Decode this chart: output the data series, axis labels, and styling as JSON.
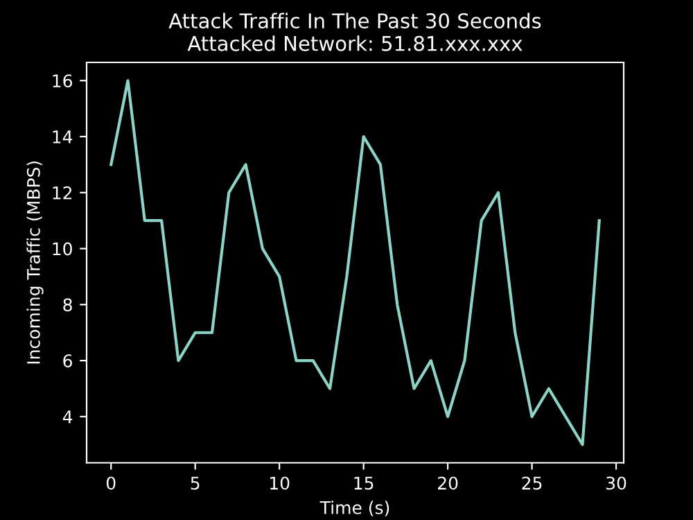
{
  "chart_data": {
    "type": "line",
    "title": "Attack Traffic In The Past 30 Seconds\nAttacked Network: 51.81.xxx.xxx",
    "xlabel": "Time (s)",
    "ylabel": "Incoming Traffic (MBPS)",
    "x": [
      0,
      1,
      2,
      3,
      4,
      5,
      6,
      7,
      8,
      9,
      10,
      11,
      12,
      13,
      14,
      15,
      16,
      17,
      18,
      19,
      20,
      21,
      22,
      23,
      24,
      25,
      26,
      27,
      28,
      29
    ],
    "series": [
      {
        "color": "#8dd3c7",
        "values": [
          13,
          16,
          11,
          11,
          6,
          7,
          7,
          12,
          13,
          10,
          9,
          6,
          6,
          5,
          9,
          14,
          13,
          8,
          5,
          6,
          4,
          6,
          11,
          12,
          7,
          4,
          5,
          4,
          3,
          11
        ]
      }
    ],
    "xlim": [
      -1.45,
      30.45
    ],
    "ylim": [
      2.35,
      16.65
    ],
    "xticks": [
      0,
      5,
      10,
      15,
      20,
      25,
      30
    ],
    "yticks": [
      4,
      6,
      8,
      10,
      12,
      14,
      16
    ],
    "grid": false,
    "legend": false
  }
}
